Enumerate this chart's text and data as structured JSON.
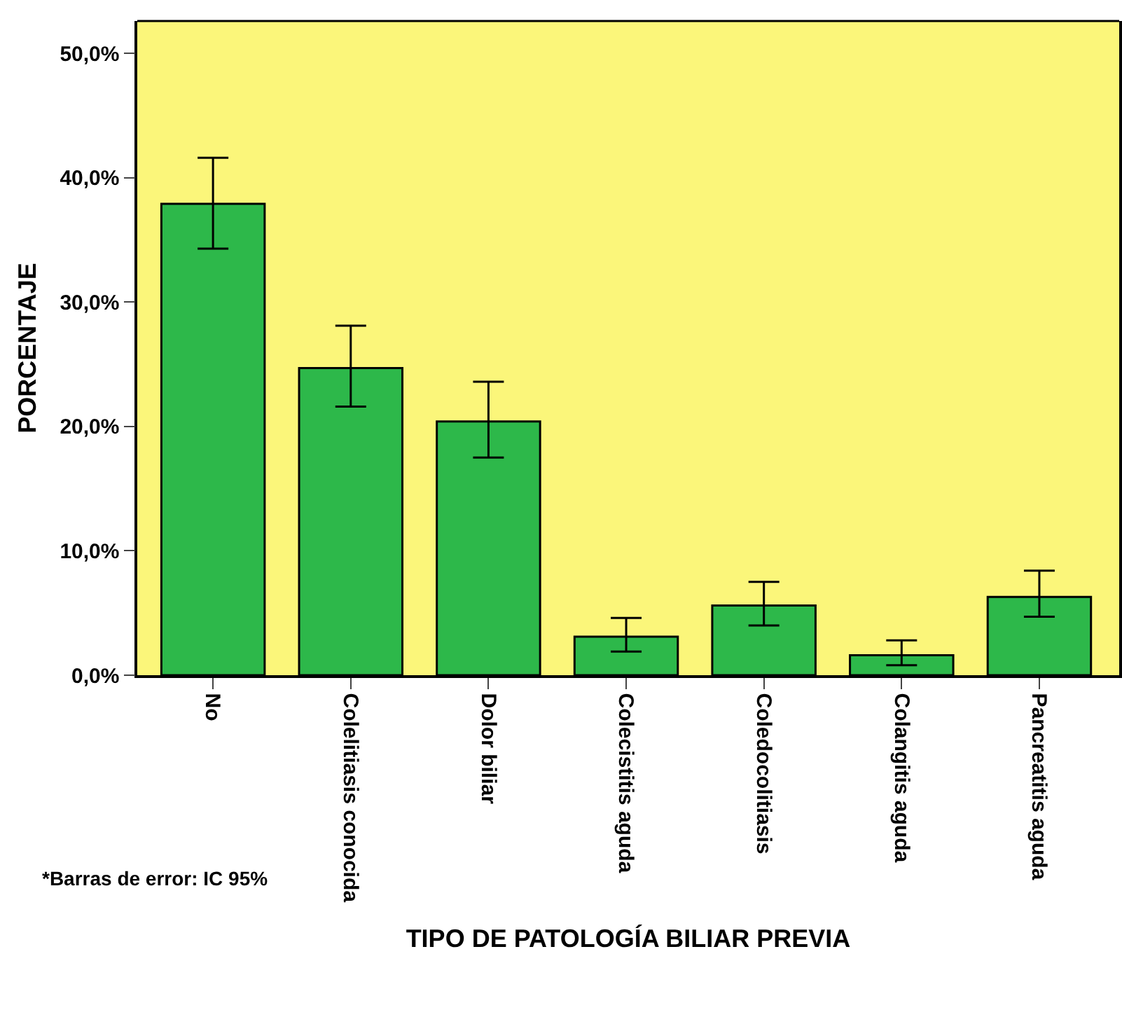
{
  "chart_data": {
    "type": "bar",
    "xlabel": "TIPO DE PATOLOGÍA BILIAR PREVIA",
    "ylabel": "PORCENTAJE",
    "categories": [
      "No",
      "Colelitiasis conocida",
      "Dolor biliar",
      "Colecistitis aguda",
      "Coledocolitiasis",
      "Colangitis aguda",
      "Pancreatitis aguda"
    ],
    "values": [
      37.9,
      24.7,
      20.4,
      3.1,
      5.6,
      1.6,
      6.3
    ],
    "errors": [
      [
        34.3,
        41.6
      ],
      [
        21.6,
        28.1
      ],
      [
        17.5,
        23.6
      ],
      [
        1.9,
        4.6
      ],
      [
        4.0,
        7.5
      ],
      [
        0.8,
        2.8
      ],
      [
        4.7,
        8.4
      ]
    ],
    "color": "#2db84a",
    "ylim": [
      0,
      52.6
    ],
    "yticks": [
      {
        "value": 0,
        "label": "0,0%"
      },
      {
        "value": 10,
        "label": "10,0%"
      },
      {
        "value": 20,
        "label": "20,0%"
      },
      {
        "value": 30,
        "label": "30,0%"
      },
      {
        "value": 40,
        "label": "40,0%"
      },
      {
        "value": 50,
        "label": "50,0%"
      }
    ],
    "grid": false,
    "annotations": [
      "*Barras de error: IC 95%"
    ]
  }
}
